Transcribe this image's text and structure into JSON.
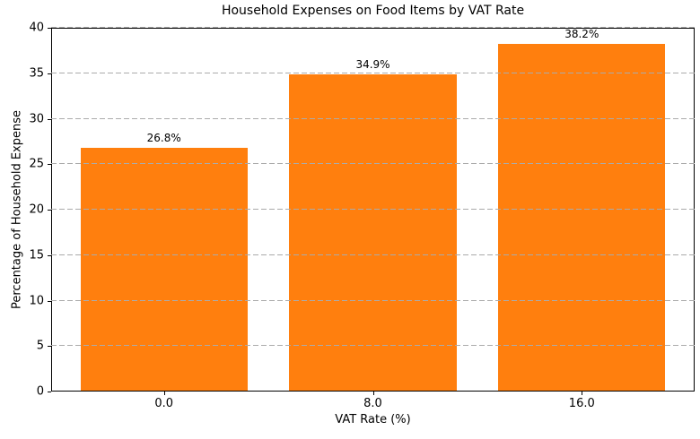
{
  "chart_data": {
    "type": "bar",
    "title": "Household Expenses on Food Items by VAT Rate",
    "xlabel": "VAT Rate (%)",
    "ylabel": "Percentage of Household Expense",
    "categories": [
      "0.0",
      "8.0",
      "16.0"
    ],
    "values": [
      26.8,
      34.9,
      38.2
    ],
    "bar_labels": [
      "26.8%",
      "34.9%",
      "38.2%"
    ],
    "ylim": [
      0,
      40
    ],
    "yticks": [
      0,
      5,
      10,
      15,
      20,
      25,
      30,
      35,
      40
    ],
    "bar_color": "#ff7f0e",
    "grid_color": "#ababab",
    "grid_style": "dashed",
    "grid_axis": "y",
    "grid_over_bars": true,
    "axis_color": "#000000",
    "background": "#ffffff",
    "legend_position": "none"
  }
}
